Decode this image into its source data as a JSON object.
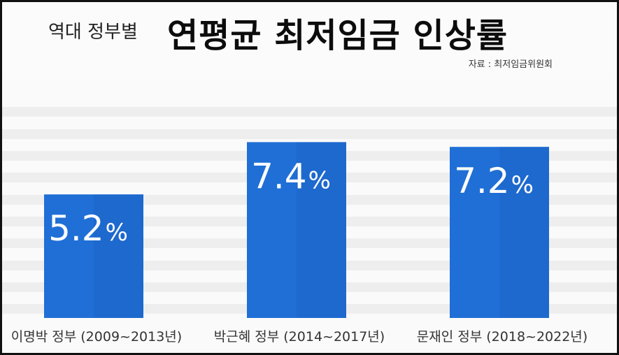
{
  "header": {
    "kicker": "역대 정부별",
    "title": "연평균 최저임금 인상률",
    "source": "자료 : 최저임금위원회"
  },
  "chart_data": {
    "type": "bar",
    "title": "연평균 최저임금 인상률",
    "categories": [
      "이명박 정부 (2009~2013년)",
      "박근혜 정부 (2014~2017년)",
      "문재인 정부 (2018~2022년)"
    ],
    "values": [
      5.2,
      7.4,
      7.2
    ],
    "value_labels": [
      "5.2",
      "7.4",
      "7.2"
    ],
    "unit": "%",
    "xlabel": "",
    "ylabel": "",
    "ylim": [
      0,
      10
    ],
    "grid": false,
    "legend": "none",
    "colors": {
      "bar": "#1f6fd6",
      "bar_shadow": "#1a5fc0",
      "label": "#ffffff",
      "stripe": "#e9e9e9"
    }
  }
}
